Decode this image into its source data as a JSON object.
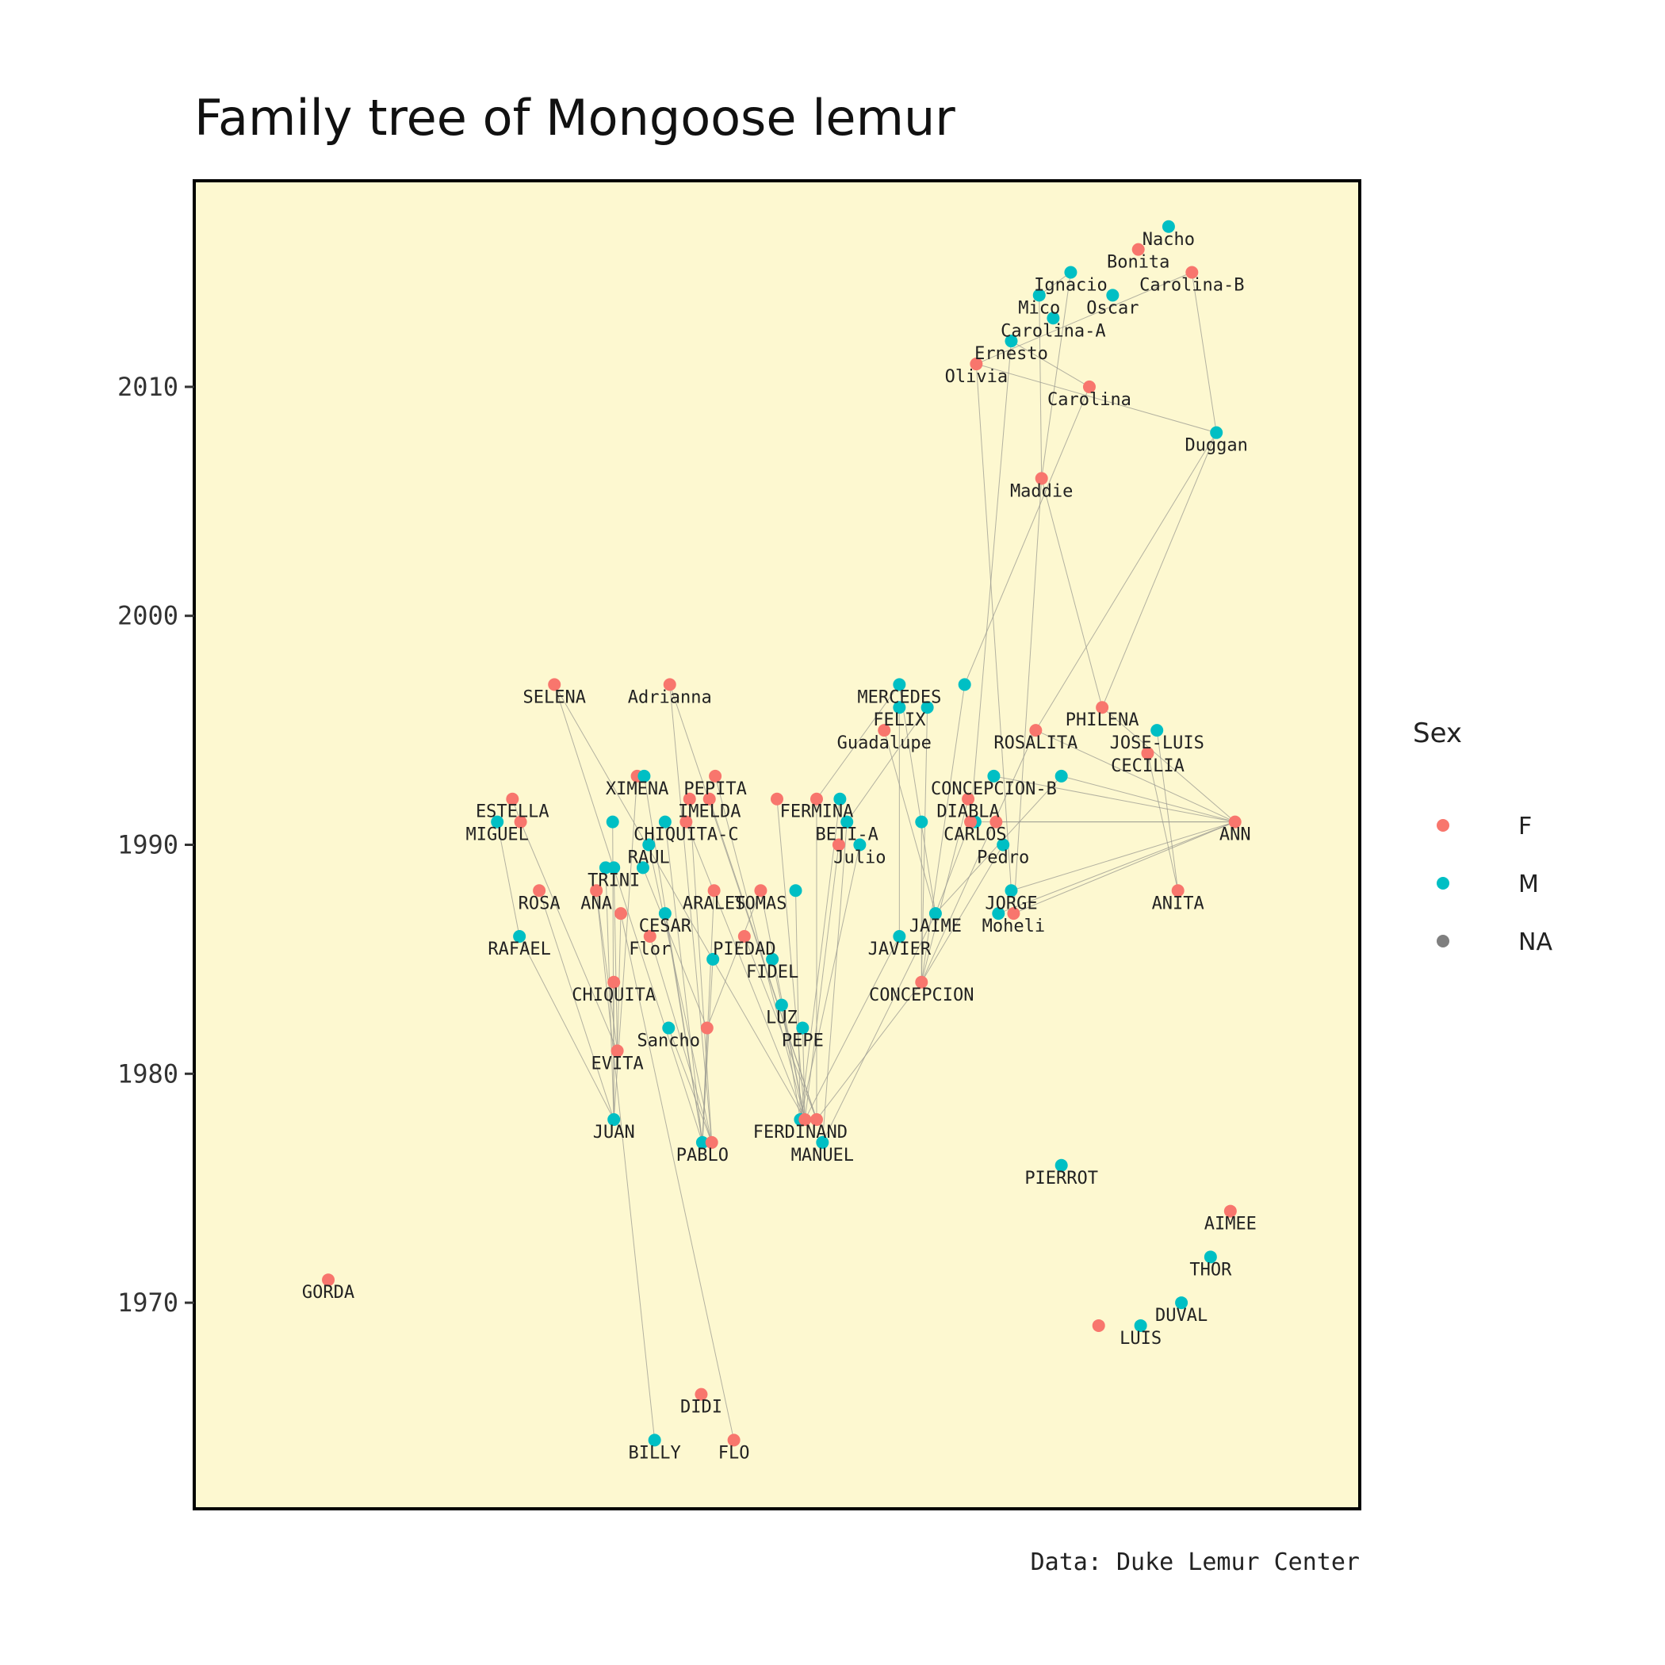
{
  "chart_data": {
    "type": "scatter",
    "title": "Family tree of Mongoose lemur",
    "caption": "Data: Duke Lemur Center",
    "xlabel": "",
    "ylabel": "",
    "ylim": [
      1961,
      2019
    ],
    "xlim": [
      0,
      100
    ],
    "y_ticks": [
      1970,
      1980,
      1990,
      2000,
      2010
    ],
    "x_axis_shown": false,
    "grid": false,
    "panel_background": "#fdf8d0",
    "edge_color": "#9a9a90",
    "legend": {
      "title": "Sex",
      "position": "right",
      "entries": [
        {
          "label": "F",
          "color": "#f8766d"
        },
        {
          "label": "M",
          "color": "#00bfc4"
        },
        {
          "label": "NA",
          "color": "#7f7f7f"
        }
      ]
    },
    "points": [
      {
        "name": "GORDA",
        "sex": "F",
        "x": 11.5,
        "y": 1971
      },
      {
        "name": "DIDI",
        "sex": "F",
        "x": 43.5,
        "y": 1966
      },
      {
        "name": "BILLY",
        "sex": "M",
        "x": 39.5,
        "y": 1964
      },
      {
        "name": "FLO",
        "sex": "F",
        "x": 46.3,
        "y": 1964
      },
      {
        "name": "ESTELLA",
        "sex": "F",
        "x": 27.3,
        "y": 1992
      },
      {
        "name": "MIGUEL",
        "sex": "M",
        "x": 26,
        "y": 1991
      },
      {
        "name": "",
        "sex": "F",
        "x": 28,
        "y": 1991
      },
      {
        "name": "SELENA",
        "sex": "F",
        "x": 30.9,
        "y": 1997
      },
      {
        "name": "Adrianna",
        "sex": "F",
        "x": 40.8,
        "y": 1997
      },
      {
        "name": "XIMENA",
        "sex": "F",
        "x": 38,
        "y": 1993
      },
      {
        "name": "",
        "sex": "M",
        "x": 38.6,
        "y": 1993
      },
      {
        "name": "PEPITA",
        "sex": "F",
        "x": 44.7,
        "y": 1993
      },
      {
        "name": "",
        "sex": "F",
        "x": 42.5,
        "y": 1992
      },
      {
        "name": "IMELDA",
        "sex": "F",
        "x": 44.2,
        "y": 1992
      },
      {
        "name": "",
        "sex": "M",
        "x": 35.9,
        "y": 1991
      },
      {
        "name": "",
        "sex": "M",
        "x": 40.4,
        "y": 1991
      },
      {
        "name": "CHIQUITA-C",
        "sex": "F",
        "x": 42.2,
        "y": 1991
      },
      {
        "name": "RAUL",
        "sex": "M",
        "x": 39,
        "y": 1990
      },
      {
        "name": "",
        "sex": "M",
        "x": 35.3,
        "y": 1989
      },
      {
        "name": "TRINI",
        "sex": "M",
        "x": 36,
        "y": 1989
      },
      {
        "name": "",
        "sex": "M",
        "x": 38.5,
        "y": 1989
      },
      {
        "name": "ROSA",
        "sex": "F",
        "x": 29.6,
        "y": 1988
      },
      {
        "name": "ANA",
        "sex": "F",
        "x": 34.5,
        "y": 1988
      },
      {
        "name": "ARALES",
        "sex": "F",
        "x": 44.6,
        "y": 1988
      },
      {
        "name": "TOMAS",
        "sex": "F",
        "x": 48.6,
        "y": 1988
      },
      {
        "name": "",
        "sex": "M",
        "x": 51.6,
        "y": 1988
      },
      {
        "name": "",
        "sex": "F",
        "x": 36.6,
        "y": 1987
      },
      {
        "name": "CESAR",
        "sex": "M",
        "x": 40.4,
        "y": 1987
      },
      {
        "name": "RAFAEL",
        "sex": "M",
        "x": 27.9,
        "y": 1986
      },
      {
        "name": "Flor",
        "sex": "F",
        "x": 39.1,
        "y": 1986
      },
      {
        "name": "PIEDAD",
        "sex": "F",
        "x": 47.2,
        "y": 1986
      },
      {
        "name": "",
        "sex": "M",
        "x": 44.5,
        "y": 1985
      },
      {
        "name": "FIDEL",
        "sex": "M",
        "x": 49.6,
        "y": 1985
      },
      {
        "name": "CHIQUITA",
        "sex": "F",
        "x": 36,
        "y": 1984
      },
      {
        "name": "LUZ",
        "sex": "M",
        "x": 50.4,
        "y": 1983
      },
      {
        "name": "Sancho",
        "sex": "M",
        "x": 40.7,
        "y": 1982
      },
      {
        "name": "",
        "sex": "F",
        "x": 44,
        "y": 1982
      },
      {
        "name": "PEPE",
        "sex": "M",
        "x": 52.2,
        "y": 1982
      },
      {
        "name": "EVITA",
        "sex": "F",
        "x": 36.3,
        "y": 1981
      },
      {
        "name": "JUAN",
        "sex": "M",
        "x": 36,
        "y": 1978
      },
      {
        "name": "FERDINAND",
        "sex": "M",
        "x": 52,
        "y": 1978
      },
      {
        "name": "",
        "sex": "F",
        "x": 52.4,
        "y": 1978
      },
      {
        "name": "",
        "sex": "F",
        "x": 53.4,
        "y": 1978
      },
      {
        "name": "PABLO",
        "sex": "M",
        "x": 43.6,
        "y": 1977
      },
      {
        "name": "",
        "sex": "F",
        "x": 44.4,
        "y": 1977
      },
      {
        "name": "MANUEL",
        "sex": "M",
        "x": 53.9,
        "y": 1977
      },
      {
        "name": "",
        "sex": "F",
        "x": 50,
        "y": 1992
      },
      {
        "name": "FERMINA",
        "sex": "F",
        "x": 53.4,
        "y": 1992
      },
      {
        "name": "",
        "sex": "M",
        "x": 55.4,
        "y": 1992
      },
      {
        "name": "BETI-A",
        "sex": "M",
        "x": 56,
        "y": 1991
      },
      {
        "name": "",
        "sex": "F",
        "x": 55.3,
        "y": 1990
      },
      {
        "name": "Julio",
        "sex": "M",
        "x": 57.1,
        "y": 1990
      },
      {
        "name": "MERCEDES",
        "sex": "M",
        "x": 60.5,
        "y": 1997
      },
      {
        "name": "",
        "sex": "M",
        "x": 66.1,
        "y": 1997
      },
      {
        "name": "FELIX",
        "sex": "M",
        "x": 60.5,
        "y": 1996
      },
      {
        "name": "",
        "sex": "M",
        "x": 62.9,
        "y": 1996
      },
      {
        "name": "Guadalupe",
        "sex": "F",
        "x": 59.2,
        "y": 1995
      },
      {
        "name": "",
        "sex": "M",
        "x": 62.4,
        "y": 1991
      },
      {
        "name": "JAIME",
        "sex": "M",
        "x": 63.6,
        "y": 1987
      },
      {
        "name": "JAVIER",
        "sex": "M",
        "x": 60.5,
        "y": 1986
      },
      {
        "name": "CONCEPCION",
        "sex": "F",
        "x": 62.4,
        "y": 1984
      },
      {
        "name": "CONCEPCION-B",
        "sex": "M",
        "x": 68.6,
        "y": 1993
      },
      {
        "name": "",
        "sex": "M",
        "x": 74.4,
        "y": 1993
      },
      {
        "name": "DIABLA",
        "sex": "F",
        "x": 66.4,
        "y": 1992
      },
      {
        "name": "CARLOS",
        "sex": "M",
        "x": 67,
        "y": 1991
      },
      {
        "name": "",
        "sex": "F",
        "x": 66.6,
        "y": 1991
      },
      {
        "name": "",
        "sex": "F",
        "x": 68.8,
        "y": 1991
      },
      {
        "name": "Pedro",
        "sex": "M",
        "x": 69.4,
        "y": 1990
      },
      {
        "name": "JORGE",
        "sex": "M",
        "x": 70.1,
        "y": 1988
      },
      {
        "name": "",
        "sex": "M",
        "x": 69,
        "y": 1987
      },
      {
        "name": "Moheli",
        "sex": "F",
        "x": 70.3,
        "y": 1987
      },
      {
        "name": "ROSALITA",
        "sex": "F",
        "x": 72.2,
        "y": 1995
      },
      {
        "name": "PHILENA",
        "sex": "F",
        "x": 77.9,
        "y": 1996
      },
      {
        "name": "JOSE-LUIS",
        "sex": "M",
        "x": 82.6,
        "y": 1995
      },
      {
        "name": "CECILIA",
        "sex": "F",
        "x": 81.8,
        "y": 1994
      },
      {
        "name": "ANITA",
        "sex": "F",
        "x": 84.4,
        "y": 1988
      },
      {
        "name": "ANN",
        "sex": "F",
        "x": 89.3,
        "y": 1991
      },
      {
        "name": "PIERROT",
        "sex": "M",
        "x": 74.4,
        "y": 1976
      },
      {
        "name": "AIMEE",
        "sex": "F",
        "x": 88.9,
        "y": 1974
      },
      {
        "name": "THOR",
        "sex": "M",
        "x": 87.2,
        "y": 1972
      },
      {
        "name": "DUVAL",
        "sex": "M",
        "x": 84.7,
        "y": 1970
      },
      {
        "name": "LUIS",
        "sex": "M",
        "x": 81.2,
        "y": 1969
      },
      {
        "name": "",
        "sex": "F",
        "x": 77.6,
        "y": 1969
      },
      {
        "name": "Nacho",
        "sex": "M",
        "x": 83.6,
        "y": 2017
      },
      {
        "name": "Bonita",
        "sex": "F",
        "x": 81,
        "y": 2016
      },
      {
        "name": "Ignacio",
        "sex": "M",
        "x": 75.2,
        "y": 2015
      },
      {
        "name": "Carolina-B",
        "sex": "F",
        "x": 85.6,
        "y": 2015
      },
      {
        "name": "Mico",
        "sex": "M",
        "x": 72.5,
        "y": 2014
      },
      {
        "name": "Oscar",
        "sex": "M",
        "x": 78.8,
        "y": 2014
      },
      {
        "name": "Carolina-A",
        "sex": "M",
        "x": 73.7,
        "y": 2013
      },
      {
        "name": "Ernesto",
        "sex": "M",
        "x": 70.1,
        "y": 2012
      },
      {
        "name": "Olivia",
        "sex": "F",
        "x": 67.1,
        "y": 2011
      },
      {
        "name": "Carolina",
        "sex": "F",
        "x": 76.8,
        "y": 2010
      },
      {
        "name": "Duggan",
        "sex": "M",
        "x": 87.7,
        "y": 2008
      },
      {
        "name": "Maddie",
        "sex": "F",
        "x": 72.7,
        "y": 2006
      }
    ],
    "edges": [
      [
        7,
        41
      ],
      [
        7,
        43
      ],
      [
        8,
        42
      ],
      [
        8,
        44
      ],
      [
        9,
        39
      ],
      [
        10,
        43
      ],
      [
        11,
        41
      ],
      [
        12,
        44
      ],
      [
        13,
        42
      ],
      [
        14,
        39
      ],
      [
        15,
        43
      ],
      [
        16,
        41
      ],
      [
        17,
        44
      ],
      [
        18,
        39
      ],
      [
        19,
        38
      ],
      [
        20,
        36
      ],
      [
        21,
        39
      ],
      [
        22,
        38
      ],
      [
        23,
        43
      ],
      [
        24,
        41
      ],
      [
        25,
        40
      ],
      [
        26,
        38
      ],
      [
        27,
        43
      ],
      [
        28,
        39
      ],
      [
        29,
        44
      ],
      [
        30,
        42
      ],
      [
        31,
        43
      ],
      [
        32,
        41
      ],
      [
        33,
        39
      ],
      [
        34,
        40
      ],
      [
        35,
        44
      ],
      [
        36,
        43
      ],
      [
        37,
        41
      ],
      [
        4,
        6
      ],
      [
        5,
        28
      ],
      [
        6,
        38
      ],
      [
        2,
        22
      ],
      [
        3,
        26
      ],
      [
        46,
        41
      ],
      [
        47,
        42
      ],
      [
        48,
        40
      ],
      [
        49,
        45
      ],
      [
        50,
        41
      ],
      [
        51,
        40
      ],
      [
        52,
        58
      ],
      [
        53,
        60
      ],
      [
        54,
        59
      ],
      [
        55,
        60
      ],
      [
        56,
        58
      ],
      [
        57,
        60
      ],
      [
        58,
        45
      ],
      [
        59,
        41
      ],
      [
        60,
        42
      ],
      [
        61,
        76
      ],
      [
        62,
        76
      ],
      [
        63,
        60
      ],
      [
        64,
        76
      ],
      [
        65,
        58
      ],
      [
        66,
        76
      ],
      [
        67,
        60
      ],
      [
        68,
        76
      ],
      [
        69,
        76
      ],
      [
        70,
        76
      ],
      [
        71,
        76
      ],
      [
        72,
        76
      ],
      [
        73,
        75
      ],
      [
        74,
        75
      ],
      [
        71,
        60
      ],
      [
        62,
        58
      ],
      [
        84,
        96
      ],
      [
        85,
        94
      ],
      [
        86,
        93
      ],
      [
        87,
        94
      ],
      [
        88,
        96
      ],
      [
        89,
        95
      ],
      [
        90,
        92
      ],
      [
        91,
        93
      ],
      [
        92,
        53
      ],
      [
        93,
        71
      ],
      [
        94,
        72
      ],
      [
        95,
        63
      ],
      [
        96,
        89
      ],
      [
        84,
        95
      ],
      [
        85,
        87
      ],
      [
        86,
        91
      ],
      [
        90,
        65
      ],
      [
        91,
        68
      ],
      [
        93,
        72
      ],
      [
        94,
        70
      ],
      [
        52,
        47
      ],
      [
        55,
        49
      ],
      [
        36,
        24
      ]
    ]
  }
}
